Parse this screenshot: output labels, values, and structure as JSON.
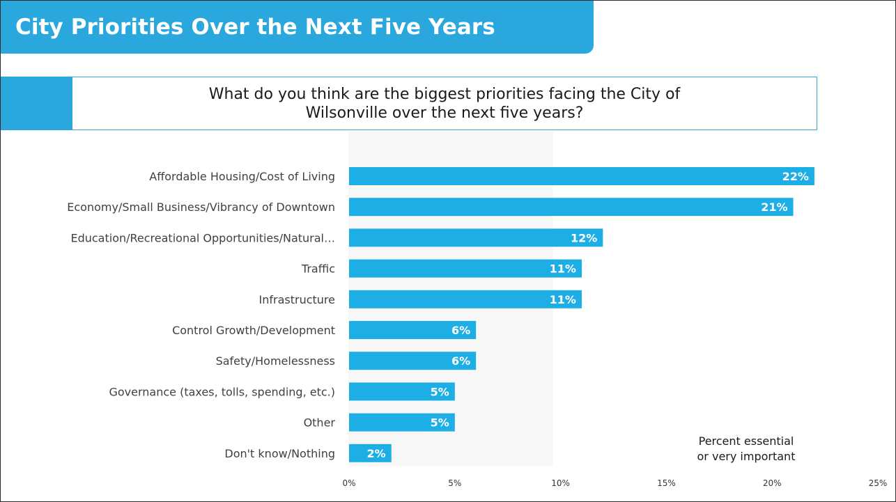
{
  "header": {
    "title": "City Priorities Over the Next Five Years"
  },
  "question": {
    "text": "What do you think are the biggest priorities facing the City of Wilsonville over the next five years?"
  },
  "chart_data": {
    "type": "bar",
    "orientation": "horizontal",
    "categories": [
      "Affordable Housing/Cost of Living",
      "Economy/Small Business/Vibrancy of Downtown",
      "Education/Recreational Opportunities/Natural…",
      "Traffic",
      "Infrastructure",
      "Control Growth/Development",
      "Safety/Homelessness",
      "Governance (taxes, tolls, spending, etc.)",
      "Other",
      "Don't know/Nothing"
    ],
    "values": [
      22,
      21,
      12,
      11,
      11,
      6,
      6,
      5,
      5,
      2
    ],
    "data_labels": [
      "22%",
      "21%",
      "12%",
      "11%",
      "11%",
      "6%",
      "6%",
      "5%",
      "5%",
      "2%"
    ],
    "xlim": [
      0,
      25
    ],
    "xticks": [
      0,
      5,
      10,
      15,
      20,
      25
    ],
    "xtick_labels": [
      "0%",
      "5%",
      "10%",
      "15%",
      "20%",
      "25%"
    ],
    "bar_color": "#1eaee6",
    "grid": false,
    "legend": "none"
  },
  "note": {
    "line1": "Percent essential",
    "line2": "or very important"
  },
  "colors": {
    "accent": "#2aa7dd",
    "bar": "#1eaee6"
  }
}
